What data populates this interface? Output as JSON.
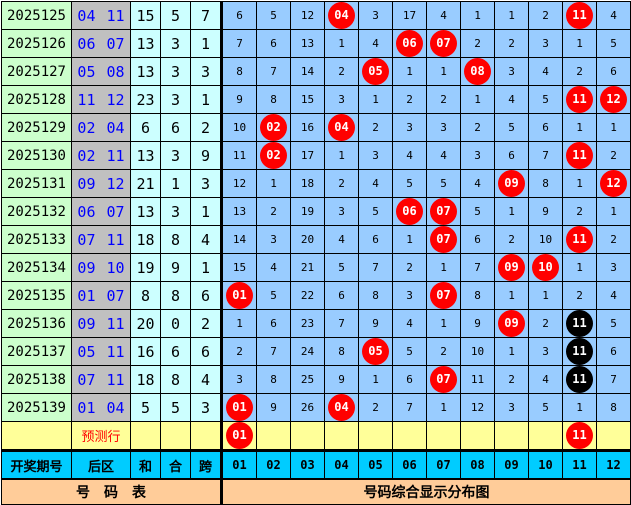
{
  "rows": [
    {
      "period": "2025125",
      "back": "04 11",
      "sum": "15",
      "he": "5",
      "kua": "7",
      "cells": [
        "6",
        "5",
        "12",
        {
          "n": "04",
          "c": "red"
        },
        "3",
        "17",
        "4",
        "1",
        "1",
        "2",
        {
          "n": "11",
          "c": "red"
        },
        "4"
      ]
    },
    {
      "period": "2025126",
      "back": "06 07",
      "sum": "13",
      "he": "3",
      "kua": "1",
      "cells": [
        "7",
        "6",
        "13",
        "1",
        "4",
        {
          "n": "06",
          "c": "red"
        },
        {
          "n": "07",
          "c": "red"
        },
        "2",
        "2",
        "3",
        "1",
        "5"
      ]
    },
    {
      "period": "2025127",
      "back": "05 08",
      "sum": "13",
      "he": "3",
      "kua": "3",
      "cells": [
        "8",
        "7",
        "14",
        "2",
        {
          "n": "05",
          "c": "red"
        },
        "1",
        "1",
        {
          "n": "08",
          "c": "red"
        },
        "3",
        "4",
        "2",
        "6"
      ]
    },
    {
      "period": "2025128",
      "back": "11 12",
      "sum": "23",
      "he": "3",
      "kua": "1",
      "cells": [
        "9",
        "8",
        "15",
        "3",
        "1",
        "2",
        "2",
        "1",
        "4",
        "5",
        {
          "n": "11",
          "c": "red"
        },
        {
          "n": "12",
          "c": "red"
        }
      ]
    },
    {
      "period": "2025129",
      "back": "02 04",
      "sum": "6",
      "he": "6",
      "kua": "2",
      "cells": [
        "10",
        {
          "n": "02",
          "c": "red"
        },
        "16",
        {
          "n": "04",
          "c": "red"
        },
        "2",
        "3",
        "3",
        "2",
        "5",
        "6",
        "1",
        "1"
      ]
    },
    {
      "period": "2025130",
      "back": "02 11",
      "sum": "13",
      "he": "3",
      "kua": "9",
      "cells": [
        "11",
        {
          "n": "02",
          "c": "red"
        },
        "17",
        "1",
        "3",
        "4",
        "4",
        "3",
        "6",
        "7",
        {
          "n": "11",
          "c": "red"
        },
        "2"
      ]
    },
    {
      "period": "2025131",
      "back": "09 12",
      "sum": "21",
      "he": "1",
      "kua": "3",
      "cells": [
        "12",
        "1",
        "18",
        "2",
        "4",
        "5",
        "5",
        "4",
        {
          "n": "09",
          "c": "red"
        },
        "8",
        "1",
        {
          "n": "12",
          "c": "red"
        }
      ]
    },
    {
      "period": "2025132",
      "back": "06 07",
      "sum": "13",
      "he": "3",
      "kua": "1",
      "cells": [
        "13",
        "2",
        "19",
        "3",
        "5",
        {
          "n": "06",
          "c": "red"
        },
        {
          "n": "07",
          "c": "red"
        },
        "5",
        "1",
        "9",
        "2",
        "1"
      ]
    },
    {
      "period": "2025133",
      "back": "07 11",
      "sum": "18",
      "he": "8",
      "kua": "4",
      "cells": [
        "14",
        "3",
        "20",
        "4",
        "6",
        "1",
        {
          "n": "07",
          "c": "red"
        },
        "6",
        "2",
        "10",
        {
          "n": "11",
          "c": "red"
        },
        "2"
      ]
    },
    {
      "period": "2025134",
      "back": "09 10",
      "sum": "19",
      "he": "9",
      "kua": "1",
      "cells": [
        "15",
        "4",
        "21",
        "5",
        "7",
        "2",
        "1",
        "7",
        {
          "n": "09",
          "c": "red"
        },
        {
          "n": "10",
          "c": "red"
        },
        "1",
        "3"
      ]
    },
    {
      "period": "2025135",
      "back": "01 07",
      "sum": "8",
      "he": "8",
      "kua": "6",
      "cells": [
        {
          "n": "01",
          "c": "red"
        },
        "5",
        "22",
        "6",
        "8",
        "3",
        {
          "n": "07",
          "c": "red"
        },
        "8",
        "1",
        "1",
        "2",
        "4"
      ]
    },
    {
      "period": "2025136",
      "back": "09 11",
      "sum": "20",
      "he": "0",
      "kua": "2",
      "cells": [
        "1",
        "6",
        "23",
        "7",
        "9",
        "4",
        "1",
        "9",
        {
          "n": "09",
          "c": "red"
        },
        "2",
        {
          "n": "11",
          "c": "black"
        },
        "5"
      ]
    },
    {
      "period": "2025137",
      "back": "05 11",
      "sum": "16",
      "he": "6",
      "kua": "6",
      "cells": [
        "2",
        "7",
        "24",
        "8",
        {
          "n": "05",
          "c": "red"
        },
        "5",
        "2",
        "10",
        "1",
        "3",
        {
          "n": "11",
          "c": "black"
        },
        "6"
      ]
    },
    {
      "period": "2025138",
      "back": "07 11",
      "sum": "18",
      "he": "8",
      "kua": "4",
      "cells": [
        "3",
        "8",
        "25",
        "9",
        "1",
        "6",
        {
          "n": "07",
          "c": "red"
        },
        "11",
        "2",
        "4",
        {
          "n": "11",
          "c": "black"
        },
        "7"
      ]
    },
    {
      "period": "2025139",
      "back": "01 04",
      "sum": "5",
      "he": "5",
      "kua": "3",
      "cells": [
        {
          "n": "01",
          "c": "red"
        },
        "9",
        "26",
        {
          "n": "04",
          "c": "red"
        },
        "2",
        "7",
        "1",
        "12",
        "3",
        "5",
        "1",
        "8"
      ]
    }
  ],
  "prediction": {
    "label": "预测行",
    "cells": [
      {
        "n": "01",
        "c": "red"
      },
      "",
      "",
      "",
      "",
      "",
      "",
      "",
      "",
      "",
      {
        "n": "11",
        "c": "red"
      },
      ""
    ]
  },
  "header": {
    "period": "开奖期号",
    "back": "后区",
    "sum": "和",
    "he": "合",
    "kua": "跨",
    "numbers": [
      "01",
      "02",
      "03",
      "04",
      "05",
      "06",
      "07",
      "08",
      "09",
      "10",
      "11",
      "12"
    ]
  },
  "footer": {
    "left": "号　码　表",
    "right": "号码综合显示分布图"
  },
  "colors": {
    "ball": "#ff0000",
    "ball_repeat": "#000000",
    "period_bg": "#ccffcc",
    "back_bg": "#c0c0c0",
    "dist_bg": "#99ccff",
    "prediction_bg": "#ffff99",
    "header_bg": "#00ccff",
    "footer_bg": "#ffcc99"
  }
}
